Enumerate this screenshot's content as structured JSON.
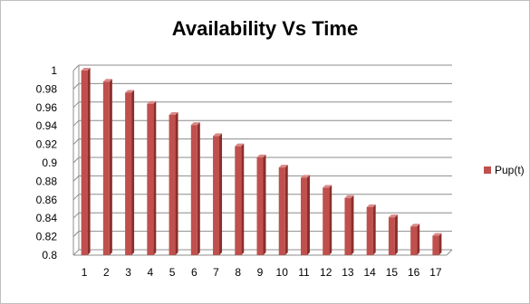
{
  "chart_data": {
    "type": "bar",
    "title": "Availability Vs Time",
    "categories": [
      "1",
      "2",
      "3",
      "4",
      "5",
      "6",
      "7",
      "8",
      "9",
      "10",
      "11",
      "12",
      "13",
      "14",
      "15",
      "16",
      "17"
    ],
    "series": [
      {
        "name": "Pup(t)",
        "values": [
          1.0,
          0.988,
          0.976,
          0.964,
          0.952,
          0.941,
          0.929,
          0.918,
          0.906,
          0.895,
          0.884,
          0.873,
          0.862,
          0.852,
          0.841,
          0.831,
          0.821
        ],
        "color": "#c0504d"
      }
    ],
    "ylim": [
      0.8,
      1.0
    ],
    "yticks": [
      "0.8",
      "0.82",
      "0.84",
      "0.86",
      "0.88",
      "0.9",
      "0.92",
      "0.94",
      "0.96",
      "0.98",
      "1"
    ],
    "grid": true,
    "legend_position": "right"
  }
}
